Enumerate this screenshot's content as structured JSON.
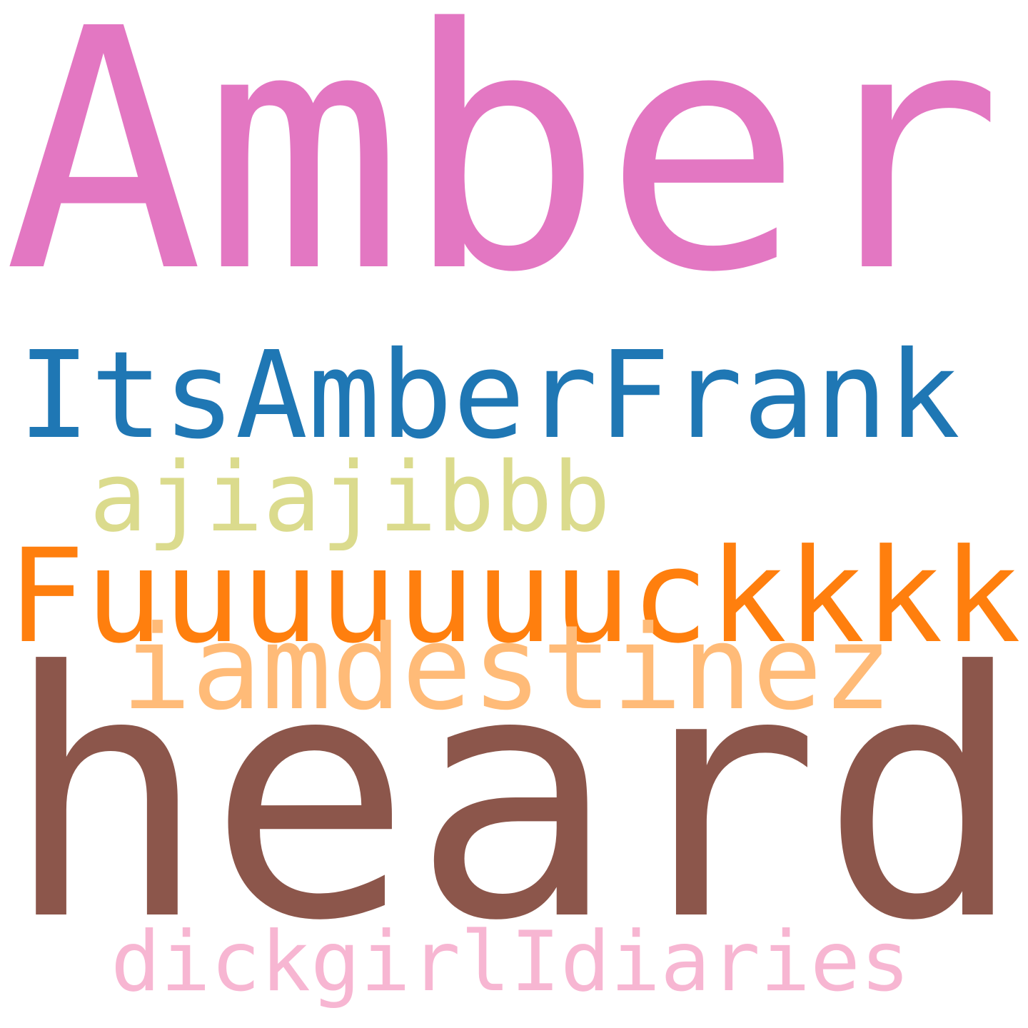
{
  "background_color": "#ffffff",
  "words": [
    {
      "text": "Amber",
      "color": "#e377c2"
    },
    {
      "text": "ItsAmberFrank",
      "color": "#1f77b4"
    },
    {
      "text": "ajiajibbb",
      "color": "#dbdb8d"
    },
    {
      "text": "Fuuuuuuuckkkk",
      "color": "#ff7f0e"
    },
    {
      "text": "iamdestinez",
      "color": "#ffbb78"
    },
    {
      "text": "heard",
      "color": "#8c564b"
    },
    {
      "text": "dickgirlIdiaries",
      "color": "#f7b6d2"
    }
  ]
}
